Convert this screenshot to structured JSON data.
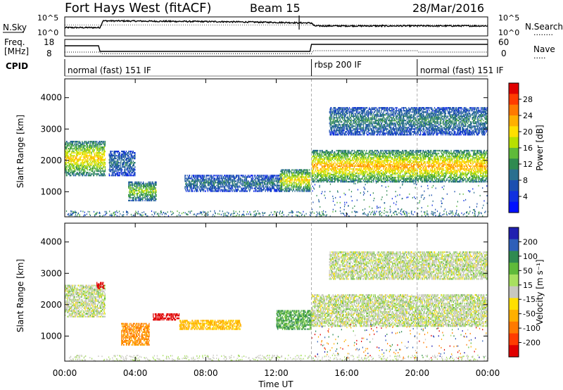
{
  "header": {
    "station": "Fort Hays West (fitACF)",
    "beam": "Beam 15",
    "date": "28/Mar/2016"
  },
  "labels": {
    "nsky": "N.Sky",
    "nsearch": "N.Search",
    "nsearch_dots": "........",
    "freq_line1": "Freq.",
    "freq_line2": "[MHz]",
    "nave": "Nave",
    "nave_dots": ".....",
    "cpid": "CPID"
  },
  "noise_axis": {
    "left_ticks": [
      "10^5",
      "10^0"
    ],
    "right_ticks": [
      "10^5",
      "10^0"
    ]
  },
  "freq_axis": {
    "left_ticks": [
      "18",
      "8"
    ],
    "right_ticks": [
      "60",
      "0"
    ]
  },
  "cpid_segments": [
    {
      "label": "normal (fast) 151 IF",
      "start_hr": 0,
      "end_hr": 14
    },
    {
      "label": "rbsp 200 IF",
      "start_hr": 14,
      "end_hr": 20
    },
    {
      "label": "normal (fast) 151 IF",
      "start_hr": 20,
      "end_hr": 24
    }
  ],
  "colorbar_power": {
    "title": "Power [dB]",
    "ticks": [
      "28",
      "24",
      "20",
      "16",
      "12",
      "8",
      "4"
    ],
    "colors": [
      "#e00000",
      "#ff3c00",
      "#ff7a00",
      "#ffb000",
      "#ffe000",
      "#b8e000",
      "#5fba3a",
      "#2f8a50",
      "#2a6f8f",
      "#1c4fb0",
      "#1030e0",
      "#0010ff"
    ]
  },
  "colorbar_velocity": {
    "title": "Velocity [m s^-1]",
    "ticks": [
      "200",
      "100",
      "50",
      "15",
      "-15",
      "-50",
      "-100",
      "-200"
    ],
    "colors": [
      "#2020b0",
      "#2e5fb8",
      "#2f8a50",
      "#5fba3a",
      "#a8e060",
      "#c8c8c0",
      "#ffe000",
      "#ffb000",
      "#ff7a00",
      "#ff3c00",
      "#e00000"
    ]
  },
  "chart_data": [
    {
      "type": "line",
      "title": "Fort Hays West (fitACF)",
      "xlabel": "",
      "ylabel": "N.Sky",
      "xlim": [
        "00:00",
        "24:00"
      ],
      "series": [
        {
          "name": "N.Sky",
          "x": [
            "00:00",
            "02:00",
            "02:10",
            "06:00",
            "09:00",
            "12:30",
            "14:00",
            "14:10",
            "18:00",
            "20:00",
            "22:00",
            "24:00"
          ],
          "values": [
            0.45,
            0.45,
            0.85,
            0.82,
            0.8,
            0.75,
            0.72,
            0.55,
            0.55,
            0.55,
            0.55,
            0.55
          ]
        },
        {
          "name": "N.Search",
          "x": [
            "00:00",
            "24:00"
          ],
          "values": [
            0.6,
            0.6
          ]
        }
      ]
    },
    {
      "type": "line",
      "ylabel": "Freq. [MHz]",
      "ylim": [
        8,
        18
      ],
      "series": [
        {
          "name": "Freq.",
          "x": [
            "00:00",
            "01:55",
            "02:00",
            "13:55",
            "14:00",
            "24:00"
          ],
          "values": [
            14.5,
            14.5,
            10.5,
            10.5,
            15.5,
            15.5
          ]
        },
        {
          "name": "Nave",
          "x": [
            "00:00",
            "02:00",
            "02:05",
            "14:00",
            "14:05",
            "20:00",
            "20:05",
            "24:00"
          ],
          "values": [
            12,
            12,
            5,
            5,
            18,
            18,
            12,
            12
          ]
        }
      ]
    },
    {
      "type": "heatmap",
      "xlabel": "",
      "ylabel": "Slant Range [km]",
      "xticks": [
        "00:00",
        "04:00",
        "08:00",
        "12:00",
        "16:00",
        "20:00",
        "00:00"
      ],
      "yticks": [
        "1000",
        "2000",
        "3000",
        "4000"
      ],
      "ylim": [
        200,
        4600
      ],
      "colorbar": "Power [dB]",
      "structures": [
        {
          "t0": 0.0,
          "t1": 2.3,
          "r0": 1500,
          "r1": 2600,
          "power": 22
        },
        {
          "t0": 2.5,
          "t1": 4.0,
          "r0": 1500,
          "r1": 2300,
          "power": 9
        },
        {
          "t0": 3.6,
          "t1": 5.2,
          "r0": 700,
          "r1": 1300,
          "power": 17
        },
        {
          "t0": 6.8,
          "t1": 12.3,
          "r0": 1000,
          "r1": 1500,
          "power": 10
        },
        {
          "t0": 12.2,
          "t1": 13.9,
          "r0": 1000,
          "r1": 1700,
          "power": 21
        },
        {
          "t0": 14.0,
          "t1": 24.0,
          "r0": 1300,
          "r1": 2300,
          "power": 24
        },
        {
          "t0": 15.0,
          "t1": 24.0,
          "r0": 2800,
          "r1": 3700,
          "power": 11
        }
      ]
    },
    {
      "type": "heatmap",
      "xlabel": "Time UT",
      "ylabel": "Slant Range [km]",
      "xticks": [
        "00:00",
        "04:00",
        "08:00",
        "12:00",
        "16:00",
        "20:00",
        "00:00"
      ],
      "yticks": [
        "1000",
        "2000",
        "3000",
        "4000"
      ],
      "ylim": [
        200,
        4600
      ],
      "colorbar": "Velocity [m s^-1]",
      "structures": [
        {
          "t0": 0.0,
          "t1": 2.3,
          "r0": 1600,
          "r1": 2600,
          "velocity": 0
        },
        {
          "t0": 1.8,
          "t1": 2.2,
          "r0": 2500,
          "r1": 2700,
          "velocity": -200
        },
        {
          "t0": 3.2,
          "t1": 4.8,
          "r0": 700,
          "r1": 1400,
          "velocity": -80
        },
        {
          "t0": 5.0,
          "t1": 6.5,
          "r0": 1500,
          "r1": 1700,
          "velocity": -200
        },
        {
          "t0": 6.5,
          "t1": 10.0,
          "r0": 1200,
          "r1": 1500,
          "velocity": -40
        },
        {
          "t0": 12.0,
          "t1": 14.0,
          "r0": 1200,
          "r1": 1800,
          "velocity": 30
        },
        {
          "t0": 14.0,
          "t1": 24.0,
          "r0": 1300,
          "r1": 2300,
          "velocity": 0
        },
        {
          "t0": 15.0,
          "t1": 24.0,
          "r0": 2800,
          "r1": 3700,
          "velocity": 0
        }
      ]
    }
  ],
  "xaxis_label": "Time UT"
}
